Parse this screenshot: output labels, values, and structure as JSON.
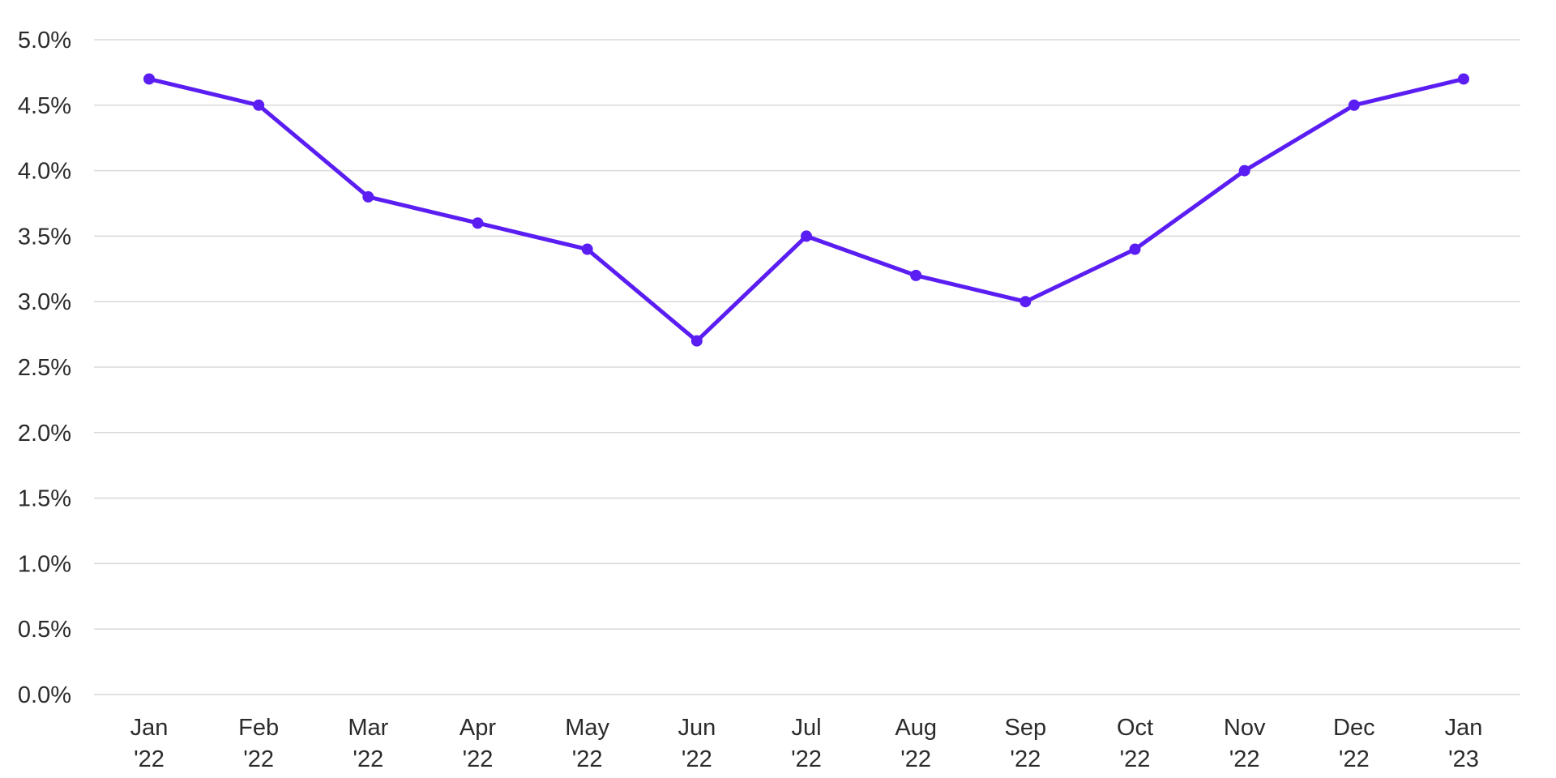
{
  "chart_data": {
    "type": "line",
    "title": "",
    "xlabel": "",
    "ylabel": "",
    "categories": [
      [
        "Jan",
        "'22"
      ],
      [
        "Feb",
        "'22"
      ],
      [
        "Mar",
        "'22"
      ],
      [
        "Apr",
        "'22"
      ],
      [
        "May",
        "'22"
      ],
      [
        "Jun",
        "'22"
      ],
      [
        "Jul",
        "'22"
      ],
      [
        "Aug",
        "'22"
      ],
      [
        "Sep",
        "'22"
      ],
      [
        "Oct",
        "'22"
      ],
      [
        "Nov",
        "'22"
      ],
      [
        "Dec",
        "'22"
      ],
      [
        "Jan",
        "'23"
      ]
    ],
    "series": [
      {
        "values": [
          4.7,
          4.5,
          3.8,
          3.6,
          3.4,
          2.7,
          3.5,
          3.2,
          3.0,
          3.4,
          4.0,
          4.5,
          4.7
        ],
        "color": "#5a1df2"
      }
    ],
    "ylim": [
      0,
      5
    ],
    "yticks": [
      {
        "value": 0.0,
        "label": "0.0%"
      },
      {
        "value": 0.5,
        "label": "0.5%"
      },
      {
        "value": 1.0,
        "label": "1.0%"
      },
      {
        "value": 1.5,
        "label": "1.5%"
      },
      {
        "value": 2.0,
        "label": "2.0%"
      },
      {
        "value": 2.5,
        "label": "2.5%"
      },
      {
        "value": 3.0,
        "label": "3.0%"
      },
      {
        "value": 3.5,
        "label": "3.5%"
      },
      {
        "value": 4.0,
        "label": "4.0%"
      },
      {
        "value": 4.5,
        "label": "4.5%"
      },
      {
        "value": 5.0,
        "label": "5.0%"
      }
    ],
    "grid": true,
    "legend": "none",
    "gridColor": "#d9d9d9"
  }
}
